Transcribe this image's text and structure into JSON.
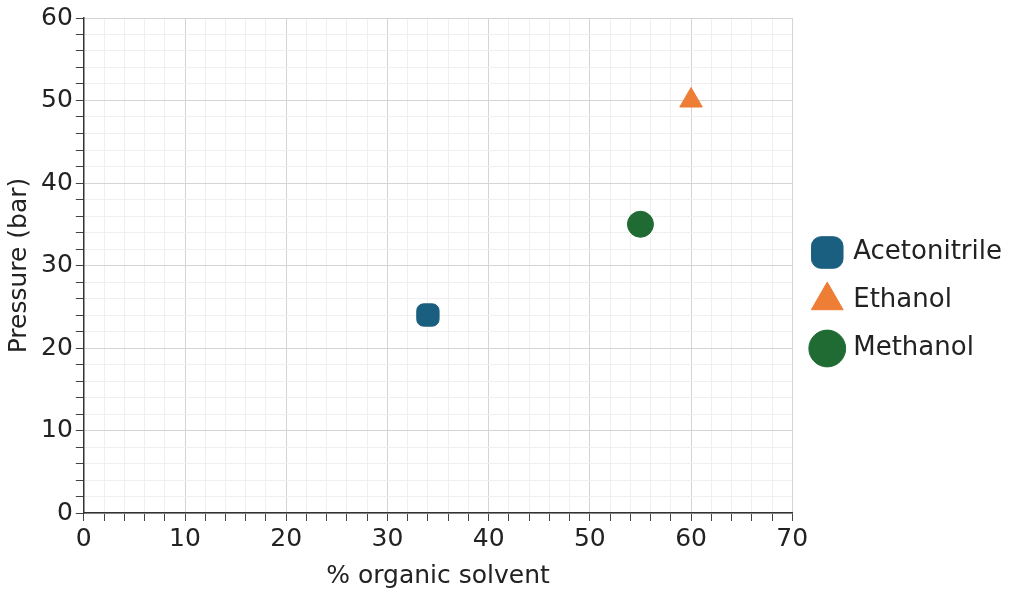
{
  "chart_data": {
    "type": "scatter",
    "xlabel": "% organic solvent",
    "ylabel": "Pressure (bar)",
    "xlim": [
      0,
      70
    ],
    "ylim": [
      0,
      60
    ],
    "xticks": [
      0,
      {
        "value": 2,
        "label": null
      },
      {
        "value": 4,
        "label": null
      },
      {
        "value": 6,
        "label": null
      },
      {
        "value": 8,
        "label": null
      },
      10,
      {
        "value": 12,
        "label": null
      },
      {
        "value": 14,
        "label": null
      },
      {
        "value": 16,
        "label": null
      },
      {
        "value": 18,
        "label": null
      },
      20,
      {
        "value": 22,
        "label": null
      },
      {
        "value": 24,
        "label": null
      },
      {
        "value": 26,
        "label": null
      },
      {
        "value": 28,
        "label": null
      },
      30,
      {
        "value": 32,
        "label": null
      },
      {
        "value": 34,
        "label": null
      },
      {
        "value": 36,
        "label": null
      },
      {
        "value": 38,
        "label": null
      },
      40,
      {
        "value": 42,
        "label": null
      },
      {
        "value": 44,
        "label": null
      },
      {
        "value": 46,
        "label": null
      },
      {
        "value": 48,
        "label": null
      },
      50,
      {
        "value": 52,
        "label": null
      },
      {
        "value": 54,
        "label": null
      },
      {
        "value": 56,
        "label": null
      },
      {
        "value": 58,
        "label": null
      },
      60,
      {
        "value": 62,
        "label": null
      },
      {
        "value": 64,
        "label": null
      },
      {
        "value": 66,
        "label": null
      },
      {
        "value": 68,
        "label": null
      },
      70
    ],
    "yticks": [
      0,
      {
        "value": 2,
        "label": null
      },
      {
        "value": 4,
        "label": null
      },
      {
        "value": 6,
        "label": null
      },
      {
        "value": 8,
        "label": null
      },
      10,
      {
        "value": 12,
        "label": null
      },
      {
        "value": 14,
        "label": null
      },
      {
        "value": 16,
        "label": null
      },
      {
        "value": 18,
        "label": null
      },
      20,
      {
        "value": 22,
        "label": null
      },
      {
        "value": 24,
        "label": null
      },
      {
        "value": 26,
        "label": null
      },
      {
        "value": 28,
        "label": null
      },
      30,
      {
        "value": 32,
        "label": null
      },
      {
        "value": 34,
        "label": null
      },
      {
        "value": 36,
        "label": null
      },
      {
        "value": 38,
        "label": null
      },
      40,
      {
        "value": 42,
        "label": null
      },
      {
        "value": 44,
        "label": null
      },
      {
        "value": 46,
        "label": null
      },
      {
        "value": 48,
        "label": null
      },
      50,
      {
        "value": 52,
        "label": null
      },
      {
        "value": 54,
        "label": null
      },
      {
        "value": 56,
        "label": null
      },
      {
        "value": 58,
        "label": null
      },
      60
    ],
    "grid": true,
    "legend": "right",
    "series": [
      {
        "name": "Acetonitrile",
        "color": "#1b5f80",
        "marker": "square",
        "x": [
          34
        ],
        "values": [
          24
        ]
      },
      {
        "name": "Ethanol",
        "color": "#ee7d36",
        "marker": "triangle",
        "x": [
          60
        ],
        "values": [
          50
        ]
      },
      {
        "name": "Methanol",
        "color": "#1f6b33",
        "marker": "circle",
        "x": [
          55
        ],
        "values": [
          35
        ]
      }
    ]
  }
}
